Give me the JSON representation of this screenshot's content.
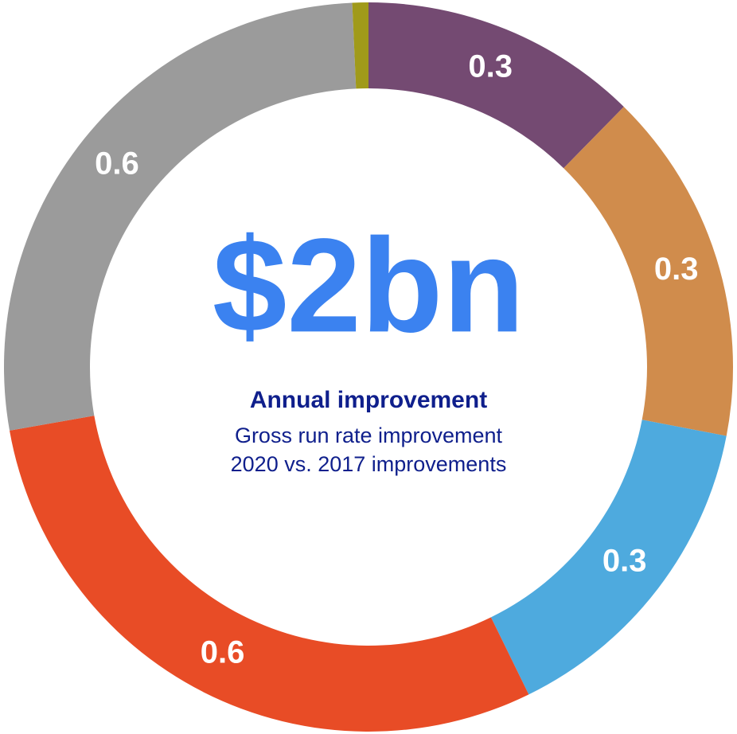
{
  "chart_data": {
    "type": "donut",
    "title": "$2bn",
    "subtitle": "Annual improvement",
    "annotations": [
      "Gross run rate improvement",
      "2020 vs. 2017 improvements"
    ],
    "values": [
      0.26,
      0.33,
      0.31,
      0.62,
      0.57,
      0.015
    ],
    "value_labels": [
      "0.3",
      "0.3",
      "0.3",
      "0.6",
      "0.6",
      null
    ],
    "colors": [
      "#744a72",
      "#d08c4c",
      "#4eaade",
      "#e84c26",
      "#9b9b9b",
      "#a09a1a"
    ]
  }
}
